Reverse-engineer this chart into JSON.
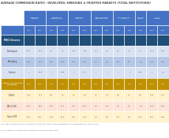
{
  "title": "AVERAGE COMMISSION RATES - DEVELOPED, EMERGING & FRONTIER MARKETS (TOTAL INSTITUTIONS)",
  "col_groups": [
    [
      "High-touch\nbundled",
      2
    ],
    [
      "High-touch\nexecution-only",
      2
    ],
    [
      "High-touch\ntadd-on",
      2
    ],
    [
      "Electronic/Algo\nexecution-only",
      2
    ],
    [
      "Electronic/Algo\ntadd-on",
      2
    ],
    [
      "Portfolio\ntrading",
      1
    ],
    [
      "All-in\nblended",
      2
    ]
  ],
  "year_vals": [
    "2014",
    "2015",
    "2014",
    "2015",
    "2014",
    "2015",
    "2014",
    "2015",
    "2014",
    "2015",
    "2015",
    "2014",
    "2015"
  ],
  "msci_label": "MSCI Universe",
  "market_rows": [
    {
      "label": "Developed",
      "values": [
        "15.9",
        "15.6",
        "7.9",
        "7.0",
        "8.8",
        "8.6",
        "4.2",
        "4.2",
        "5.7",
        "7.3",
        "4.3",
        "11.4",
        "10.6"
      ]
    },
    {
      "label": "Emerging",
      "values": [
        "24.4",
        "24.5",
        "13.7",
        "15.2",
        "11.9",
        "19.6",
        "7.7",
        "6.9",
        "5.8",
        "8.9",
        "7.5",
        "17.9",
        "18.1"
      ]
    },
    {
      "label": "Frontier",
      "values": [
        "*",
        "59.8",
        "*",
        "40.5",
        "*",
        "14.7",
        "*",
        "*",
        "*",
        "*",
        "59.7",
        "*",
        "4.9"
      ]
    }
  ],
  "approx_label": "Approx. Market Cap\n($Billions)",
  "cap_rows": [
    {
      "label": "1,000+",
      "values": [
        "17.8",
        "17.6",
        "8.6",
        "8.2",
        "9.1",
        "9.8",
        "5.0",
        "4.9",
        "5.8",
        "7.7",
        "4.8",
        "11.8",
        "12.7"
      ]
    },
    {
      "label": "250-1,000",
      "values": [
        "20.0",
        "29.6",
        "10.3",
        "12.1",
        "11.2",
        "10.6",
        "5.9",
        "5.8",
        "5.6",
        "8.0",
        "5.6",
        "13.8",
        "18.2"
      ]
    },
    {
      "label": "Up to 250",
      "values": [
        "23.0",
        "46.6",
        "13.8",
        "10.0",
        "13.3",
        "12.8",
        "6.6",
        "5.8",
        "5.8",
        "8.5",
        "16.4",
        "16.2",
        "28.5"
      ]
    }
  ],
  "note": "Note: Year-over-year trend is much higher in the 'up to 250' category due to the addition of Frontier Markets in our study in 2015.",
  "source": "Source: Greenwich Associates 2015 Comprehensive Commission Rate Study.",
  "header_bg": "#4472c4",
  "header_fg": "#ffffff",
  "msci_bg": "#1f4e79",
  "msci_fg": "#ffffff",
  "dev_bg": "#d9e2f3",
  "emg_bg": "#b4c7e7",
  "fro_bg": "#d9e2f3",
  "cap_hdr_bg": "#bf9000",
  "cap_hdr_fg": "#ffffff",
  "cap1_bg": "#fff2cc",
  "cap2_bg": "#fce4d6",
  "cap3_bg": "#fff2cc",
  "white": "#ffffff",
  "cell_fg": "#333333",
  "title_fg": "#595959"
}
